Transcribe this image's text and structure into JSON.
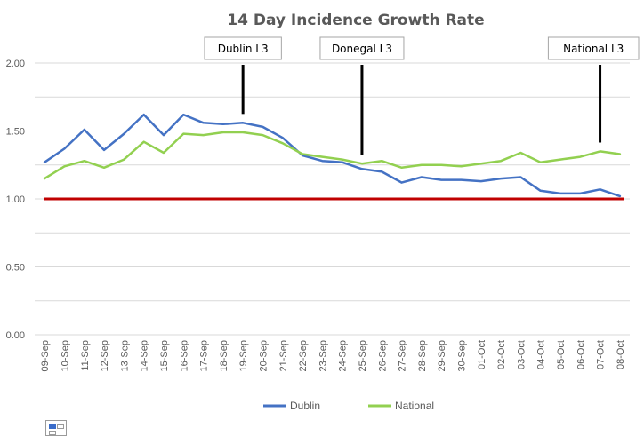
{
  "chart_data": {
    "type": "line",
    "title": "14 Day Incidence Growth Rate",
    "categories": [
      "09-Sep",
      "10-Sep",
      "11-Sep",
      "12-Sep",
      "13-Sep",
      "14-Sep",
      "15-Sep",
      "16-Sep",
      "17-Sep",
      "18-Sep",
      "19-Sep",
      "20-Sep",
      "21-Sep",
      "22-Sep",
      "23-Sep",
      "24-Sep",
      "25-Sep",
      "26-Sep",
      "27-Sep",
      "28-Sep",
      "29-Sep",
      "30-Sep",
      "01-Oct",
      "02-Oct",
      "03-Oct",
      "04-Oct",
      "05-Oct",
      "06-Oct",
      "07-Oct",
      "08-Oct"
    ],
    "series": [
      {
        "name": "Dublin",
        "color": "#4472c4",
        "values": [
          1.27,
          1.37,
          1.51,
          1.36,
          1.48,
          1.62,
          1.47,
          1.62,
          1.56,
          1.55,
          1.56,
          1.53,
          1.45,
          1.32,
          1.28,
          1.27,
          1.22,
          1.2,
          1.12,
          1.16,
          1.14,
          1.14,
          1.13,
          1.15,
          1.16,
          1.06,
          1.04,
          1.04,
          1.07,
          1.02
        ]
      },
      {
        "name": "National",
        "color": "#92d050",
        "values": [
          1.15,
          1.24,
          1.28,
          1.23,
          1.29,
          1.42,
          1.34,
          1.48,
          1.47,
          1.49,
          1.49,
          1.47,
          1.41,
          1.33,
          1.31,
          1.29,
          1.26,
          1.28,
          1.23,
          1.25,
          1.25,
          1.24,
          1.26,
          1.28,
          1.34,
          1.27,
          1.29,
          1.31,
          1.35,
          1.33
        ]
      }
    ],
    "reference_line": {
      "y": 1.0,
      "color": "#c00000"
    },
    "annotations": [
      {
        "text": "Dublin L3",
        "category": "19-Sep"
      },
      {
        "text": "Donegal L3",
        "category": "25-Sep"
      },
      {
        "text": "National L3",
        "category": "07-Oct"
      }
    ],
    "y_ticks": [
      "0.00",
      "0.50",
      "1.00",
      "1.50",
      "2.00"
    ],
    "ylim": [
      0,
      2
    ],
    "grid": true,
    "legend_position": "bottom"
  }
}
